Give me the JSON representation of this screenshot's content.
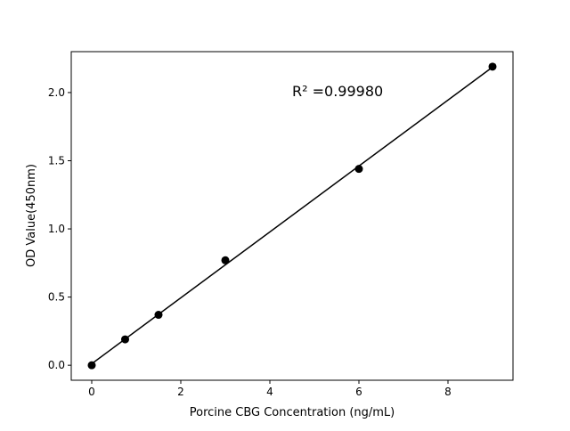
{
  "chart_data": {
    "type": "scatter",
    "title": "",
    "xlabel": "Porcine CBG Concentration (ng/mL)",
    "ylabel": "OD Value(450nm)",
    "x": [
      0,
      0.75,
      1.5,
      3,
      6,
      9
    ],
    "y": [
      0.0,
      0.19,
      0.37,
      0.77,
      1.44,
      2.19
    ],
    "xlim": [
      -0.46,
      9.46
    ],
    "ylim": [
      -0.11,
      2.3
    ],
    "xticks": [
      "0",
      "2",
      "4",
      "6",
      "8"
    ],
    "yticks": [
      "0.0",
      "0.5",
      "1.0",
      "1.5",
      "2.0"
    ],
    "fit": "linear",
    "annotation": "R² =0.99980",
    "grid": false,
    "color": "#000000"
  }
}
